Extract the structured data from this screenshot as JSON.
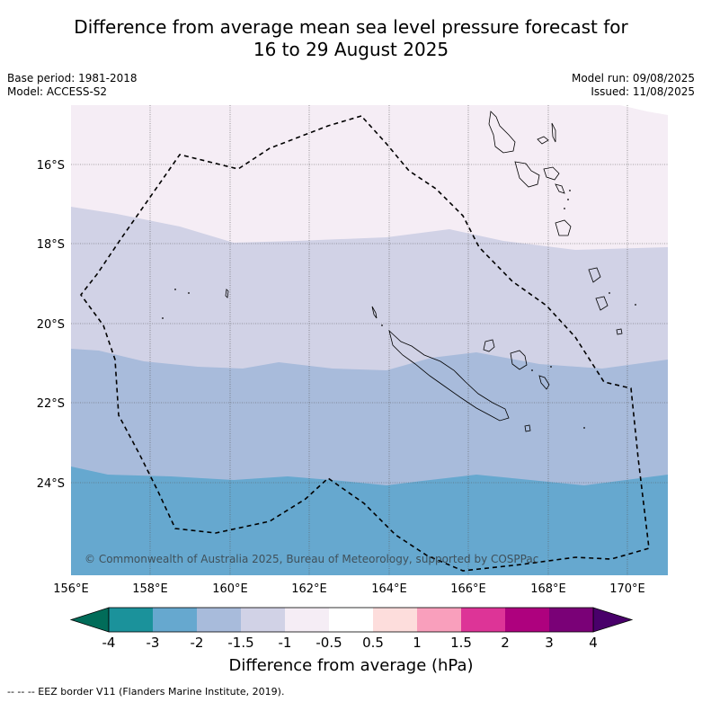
{
  "title_line1": "Difference from average mean sea level pressure forecast for",
  "title_line2": "16 to 29 August 2025",
  "base_period": "Base period: 1981-2018",
  "model": "Model: ACCESS-S2",
  "model_run": "Model run: 09/08/2025",
  "issued": "Issued: 11/08/2025",
  "copyright": "© Commonwealth of Australia 2025, Bureau of Meteorology, supported by COSPPac",
  "lon_ticks": [
    "156°E",
    "158°E",
    "160°E",
    "162°E",
    "164°E",
    "166°E",
    "168°E",
    "170°E"
  ],
  "lat_ticks": [
    "16°S",
    "18°S",
    "20°S",
    "22°S",
    "24°S"
  ],
  "colorbar": {
    "label": "Difference from average (hPa)",
    "tick_labels": [
      "-4",
      "-3",
      "-2",
      "-1.5",
      "-1",
      "-0.5",
      "0.5",
      "1",
      "1.5",
      "2",
      "3",
      "4"
    ],
    "colors": [
      "#1b929b",
      "#66a8cf",
      "#a8bbdb",
      "#d1d2e6",
      "#f5edf5",
      "#ffffff",
      "#fddddc",
      "#f99fbc",
      "#dd3497",
      "#ae017e",
      "#7a0177"
    ],
    "under_color": "#016c59",
    "over_color": "#49006a"
  },
  "map_colors": {
    "band_0_5": "#f5edf5",
    "band_1": "#d1d2e6",
    "band_1_5": "#a8bbdb",
    "band_2": "#66a8cf"
  },
  "footer": "--  --  -- EEZ border V11 (Flanders Marine Institute, 2019)."
}
